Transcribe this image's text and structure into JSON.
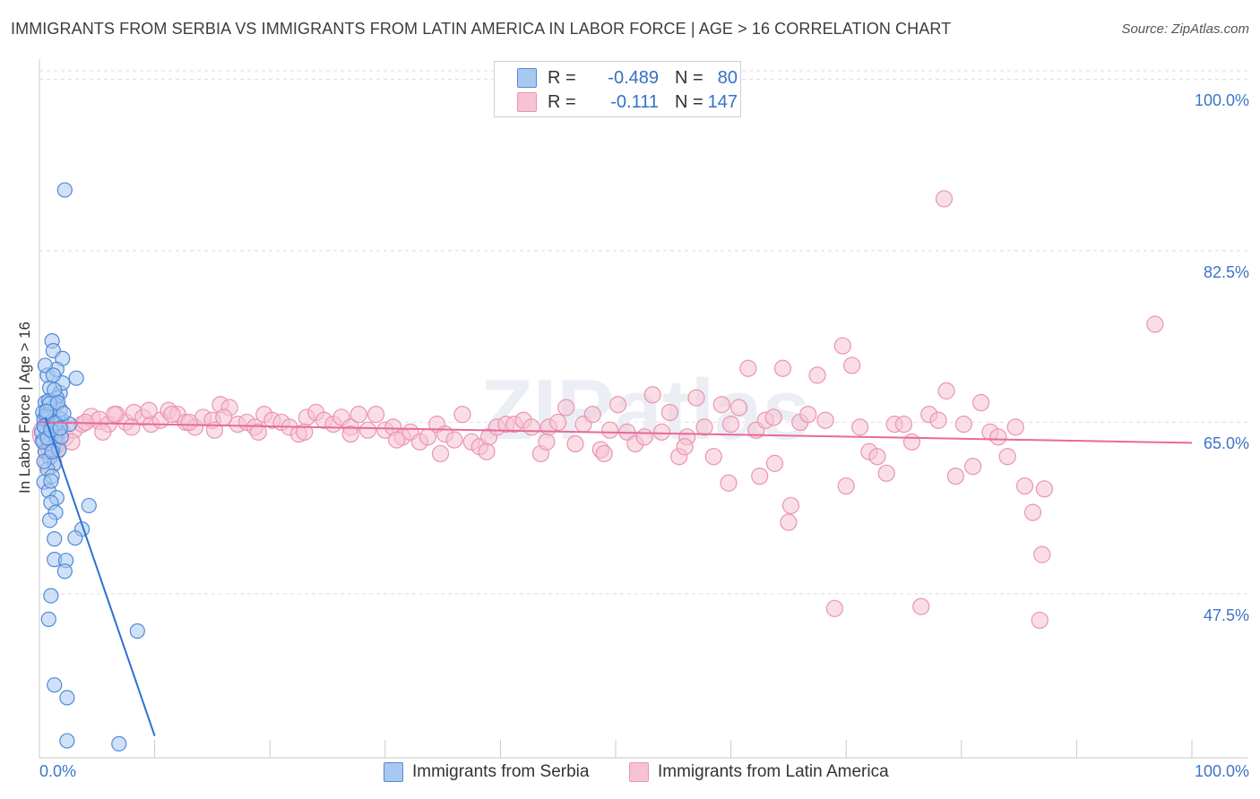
{
  "header": {
    "title": "IMMIGRANTS FROM SERBIA VS IMMIGRANTS FROM LATIN AMERICA IN LABOR FORCE | AGE > 16 CORRELATION CHART",
    "source": "Source: ZipAtlas.com"
  },
  "legend": {
    "rows": [
      {
        "r_label": "R =",
        "r_value": "-0.489",
        "n_label": "N =",
        "n_value": "80"
      },
      {
        "r_label": "R =",
        "r_value": "-0.111",
        "n_label": "N =",
        "n_value": "147"
      }
    ]
  },
  "colors": {
    "serbia_fill": "#a9c8f0",
    "serbia_stroke": "#4f8ad8",
    "serbia_line": "#2f6fd1",
    "latam_fill": "#f6c3d2",
    "latam_stroke": "#ea94b1",
    "latam_line": "#e8699a",
    "grid": "#dddddd",
    "tick_text": "#3d74c9"
  },
  "chart_data": {
    "type": "scatter",
    "title": "IMMIGRANTS FROM SERBIA VS IMMIGRANTS FROM LATIN AMERICA IN LABOR FORCE | AGE > 16 CORRELATION CHART",
    "xlabel": "",
    "ylabel": "In Labor Force | Age > 16",
    "xlim": [
      0,
      100
    ],
    "ylim": [
      31.5,
      101.5
    ],
    "x_tick_labels": [
      "0.0%",
      "100.0%"
    ],
    "y_ticks": [
      47.5,
      65.0,
      82.5,
      100.0
    ],
    "y_tick_labels": [
      "47.5%",
      "65.0%",
      "82.5%",
      "100.0%"
    ],
    "grid": true,
    "legend_position": "top-center",
    "watermark": "ZIPatlas",
    "series": [
      {
        "name": "Immigrants from Serbia",
        "r": -0.489,
        "n": 80,
        "trend": {
          "x0": 0.5,
          "y0": 65.5,
          "x1": 10.0,
          "y1": 33.0
        },
        "points": [
          [
            2.2,
            88.7
          ],
          [
            1.1,
            73.3
          ],
          [
            1.2,
            72.3
          ],
          [
            2.0,
            71.5
          ],
          [
            3.2,
            69.5
          ],
          [
            0.7,
            69.8
          ],
          [
            0.9,
            68.5
          ],
          [
            1.8,
            68.0
          ],
          [
            1.5,
            67.5
          ],
          [
            0.5,
            67.0
          ],
          [
            1.2,
            66.5
          ],
          [
            0.6,
            66.2
          ],
          [
            1.4,
            66.8
          ],
          [
            0.3,
            66.0
          ],
          [
            0.9,
            65.8
          ],
          [
            1.6,
            65.5
          ],
          [
            0.4,
            65.3
          ],
          [
            1.1,
            65.1
          ],
          [
            0.7,
            64.9
          ],
          [
            1.3,
            64.7
          ],
          [
            0.5,
            64.5
          ],
          [
            0.9,
            64.3
          ],
          [
            1.6,
            64.1
          ],
          [
            0.6,
            63.9
          ],
          [
            1.0,
            63.7
          ],
          [
            1.4,
            63.5
          ],
          [
            0.3,
            63.2
          ],
          [
            0.8,
            62.9
          ],
          [
            1.2,
            62.5
          ],
          [
            0.5,
            62.0
          ],
          [
            0.9,
            61.4
          ],
          [
            1.3,
            60.8
          ],
          [
            0.7,
            60.2
          ],
          [
            1.1,
            59.5
          ],
          [
            0.4,
            58.9
          ],
          [
            0.8,
            58.0
          ],
          [
            1.5,
            57.3
          ],
          [
            1.0,
            56.8
          ],
          [
            4.3,
            56.5
          ],
          [
            1.4,
            55.8
          ],
          [
            0.9,
            55.0
          ],
          [
            3.7,
            54.1
          ],
          [
            3.1,
            53.2
          ],
          [
            1.3,
            53.1
          ],
          [
            1.3,
            51.0
          ],
          [
            2.3,
            50.9
          ],
          [
            2.2,
            49.8
          ],
          [
            1.0,
            47.3
          ],
          [
            0.8,
            44.9
          ],
          [
            8.5,
            43.7
          ],
          [
            1.3,
            38.2
          ],
          [
            2.4,
            36.9
          ],
          [
            2.4,
            32.5
          ],
          [
            6.9,
            32.2
          ],
          [
            1.9,
            65.3
          ],
          [
            2.6,
            64.8
          ],
          [
            0.2,
            64.0
          ],
          [
            1.7,
            62.2
          ],
          [
            0.4,
            61.0
          ],
          [
            1.0,
            59.0
          ],
          [
            1.5,
            70.4
          ],
          [
            0.5,
            70.8
          ],
          [
            2.0,
            69.0
          ],
          [
            1.2,
            69.8
          ],
          [
            0.8,
            67.2
          ],
          [
            1.8,
            66.3
          ],
          [
            0.6,
            65.7
          ],
          [
            1.4,
            64.9
          ],
          [
            0.3,
            63.0
          ],
          [
            1.1,
            62.0
          ],
          [
            1.9,
            63.5
          ],
          [
            0.9,
            66.9
          ],
          [
            1.3,
            68.3
          ],
          [
            0.4,
            64.6
          ],
          [
            1.6,
            67.0
          ],
          [
            2.1,
            65.9
          ],
          [
            0.7,
            63.4
          ],
          [
            1.0,
            64.2
          ],
          [
            1.8,
            64.4
          ],
          [
            0.6,
            66.1
          ]
        ]
      },
      {
        "name": "Immigrants from Latin America",
        "r": -0.111,
        "n": 147,
        "trend": {
          "x0": 0.0,
          "y0": 65.0,
          "x1": 100.0,
          "y1": 62.9
        },
        "points": [
          [
            0.8,
            63.8,
            18
          ],
          [
            1.2,
            62.3,
            14
          ],
          [
            0.9,
            60.8,
            12
          ],
          [
            1.5,
            62.8,
            10
          ],
          [
            2.2,
            63.5,
            10
          ],
          [
            3.0,
            64.3,
            10
          ],
          [
            3.7,
            64.8,
            9
          ],
          [
            4.5,
            65.5,
            10
          ],
          [
            5.2,
            65.2,
            10
          ],
          [
            6.0,
            64.8,
            9
          ],
          [
            6.7,
            65.8,
            9
          ],
          [
            7.5,
            65.0,
            9
          ],
          [
            8.2,
            66.0,
            9
          ],
          [
            9.0,
            65.5,
            9
          ],
          [
            9.7,
            64.8,
            9
          ],
          [
            10.5,
            65.2,
            9
          ],
          [
            11.2,
            66.2,
            9
          ],
          [
            12.0,
            65.8,
            9
          ],
          [
            12.7,
            65.0,
            9
          ],
          [
            13.5,
            64.5,
            9
          ],
          [
            14.2,
            65.5,
            9
          ],
          [
            15.0,
            65.2,
            9
          ],
          [
            15.7,
            66.8,
            9
          ],
          [
            16.5,
            66.5,
            9
          ],
          [
            17.2,
            64.8,
            9
          ],
          [
            18.0,
            65.0,
            9
          ],
          [
            18.7,
            64.5,
            9
          ],
          [
            19.5,
            65.8,
            9
          ],
          [
            20.2,
            65.2,
            9
          ],
          [
            21.0,
            65.0,
            9
          ],
          [
            21.7,
            64.5,
            9
          ],
          [
            22.5,
            63.8,
            9
          ],
          [
            23.2,
            65.5,
            9
          ],
          [
            24.0,
            66.0,
            9
          ],
          [
            24.7,
            65.2,
            9
          ],
          [
            25.5,
            64.8,
            9
          ],
          [
            26.2,
            65.5,
            9
          ],
          [
            27.0,
            64.5,
            9
          ],
          [
            27.7,
            65.8,
            9
          ],
          [
            28.5,
            64.2,
            9
          ],
          [
            29.2,
            65.8,
            9
          ],
          [
            30.0,
            64.2,
            9
          ],
          [
            30.7,
            64.5,
            9
          ],
          [
            31.5,
            63.5,
            9
          ],
          [
            32.2,
            64.0,
            9
          ],
          [
            33.0,
            63.0,
            9
          ],
          [
            33.7,
            63.5,
            9
          ],
          [
            34.5,
            64.8,
            9
          ],
          [
            35.2,
            63.8,
            9
          ],
          [
            36.0,
            63.2,
            9
          ],
          [
            36.7,
            65.8,
            9
          ],
          [
            37.5,
            63.0,
            9
          ],
          [
            38.2,
            62.5,
            9
          ],
          [
            39.0,
            63.5,
            9
          ],
          [
            39.7,
            64.5,
            9
          ],
          [
            40.5,
            64.8,
            9
          ],
          [
            41.2,
            64.8,
            9
          ],
          [
            42.0,
            65.2,
            9
          ],
          [
            42.7,
            64.5,
            9
          ],
          [
            43.5,
            61.8,
            9
          ],
          [
            44.2,
            64.5,
            9
          ],
          [
            45.0,
            65.0,
            9
          ],
          [
            45.7,
            66.5,
            9
          ],
          [
            46.5,
            62.8,
            9
          ],
          [
            47.2,
            64.8,
            9
          ],
          [
            48.0,
            65.8,
            9
          ],
          [
            48.7,
            62.2,
            9
          ],
          [
            49.5,
            64.2,
            9
          ],
          [
            50.2,
            66.8,
            9
          ],
          [
            51.0,
            64.0,
            9
          ],
          [
            51.7,
            62.8,
            9
          ],
          [
            52.5,
            63.5,
            9
          ],
          [
            53.2,
            67.8,
            9
          ],
          [
            54.0,
            64.0,
            9
          ],
          [
            54.7,
            66.0,
            9
          ],
          [
            55.5,
            61.5,
            9
          ],
          [
            56.2,
            63.5,
            9
          ],
          [
            57.0,
            67.5,
            9
          ],
          [
            57.7,
            64.5,
            9
          ],
          [
            58.5,
            61.5,
            9
          ],
          [
            59.2,
            66.8,
            9
          ],
          [
            60.0,
            64.8,
            9
          ],
          [
            60.7,
            66.5,
            9
          ],
          [
            61.5,
            70.5,
            9
          ],
          [
            62.2,
            64.2,
            9
          ],
          [
            63.0,
            65.2,
            9
          ],
          [
            63.7,
            65.5,
            9
          ],
          [
            64.5,
            70.5,
            9
          ],
          [
            65.2,
            56.5,
            9
          ],
          [
            66.0,
            65.0,
            9
          ],
          [
            66.7,
            65.8,
            9
          ],
          [
            67.5,
            69.8,
            9
          ],
          [
            68.2,
            65.2,
            9
          ],
          [
            69.0,
            46.0,
            9
          ],
          [
            69.7,
            72.8,
            9
          ],
          [
            70.5,
            70.8,
            9
          ],
          [
            71.2,
            64.5,
            9
          ],
          [
            72.0,
            62.0,
            9
          ],
          [
            72.7,
            61.5,
            9
          ],
          [
            73.5,
            59.8,
            9
          ],
          [
            74.2,
            64.8,
            9
          ],
          [
            75.0,
            64.8,
            9
          ],
          [
            75.7,
            63.0,
            9
          ],
          [
            76.5,
            46.2,
            9
          ],
          [
            77.2,
            65.8,
            9
          ],
          [
            78.0,
            65.2,
            9
          ],
          [
            78.7,
            68.2,
            9
          ],
          [
            79.5,
            59.5,
            9
          ],
          [
            80.2,
            64.8,
            9
          ],
          [
            81.0,
            60.5,
            9
          ],
          [
            81.7,
            67.0,
            9
          ],
          [
            82.5,
            64.0,
            9
          ],
          [
            83.2,
            63.5,
            9
          ],
          [
            84.0,
            61.5,
            9
          ],
          [
            84.7,
            64.5,
            9
          ],
          [
            85.5,
            58.5,
            9
          ],
          [
            86.2,
            55.8,
            9
          ],
          [
            87.0,
            51.5,
            9
          ],
          [
            87.2,
            58.2,
            9
          ],
          [
            86.8,
            44.8,
            9
          ],
          [
            78.5,
            87.8,
            9
          ],
          [
            96.8,
            75.0,
            9
          ],
          [
            59.8,
            58.8,
            9
          ],
          [
            62.5,
            59.5,
            9
          ],
          [
            56.0,
            62.5,
            9
          ],
          [
            63.8,
            60.8,
            9
          ],
          [
            70.0,
            58.5,
            9
          ],
          [
            65.0,
            54.8,
            9
          ],
          [
            49.0,
            61.8,
            9
          ],
          [
            44.0,
            63.0,
            9
          ],
          [
            38.8,
            62.0,
            9
          ],
          [
            34.8,
            61.8,
            9
          ],
          [
            31.0,
            63.2,
            9
          ],
          [
            27.0,
            63.8,
            9
          ],
          [
            23.0,
            64.0,
            9
          ],
          [
            19.0,
            64.0,
            9
          ],
          [
            15.2,
            64.2,
            9
          ],
          [
            11.5,
            65.8,
            9
          ],
          [
            8.0,
            64.5,
            9
          ],
          [
            5.5,
            64.0,
            9
          ],
          [
            2.8,
            63.0,
            9
          ],
          [
            1.8,
            64.5,
            9
          ],
          [
            4.0,
            65.0,
            9
          ],
          [
            6.5,
            65.8,
            9
          ],
          [
            9.5,
            66.2,
            9
          ],
          [
            13.0,
            65.0,
            9
          ],
          [
            16.0,
            65.5,
            9
          ]
        ]
      }
    ]
  },
  "bottom_legend": {
    "items": [
      "Immigrants from Serbia",
      "Immigrants from Latin America"
    ]
  }
}
